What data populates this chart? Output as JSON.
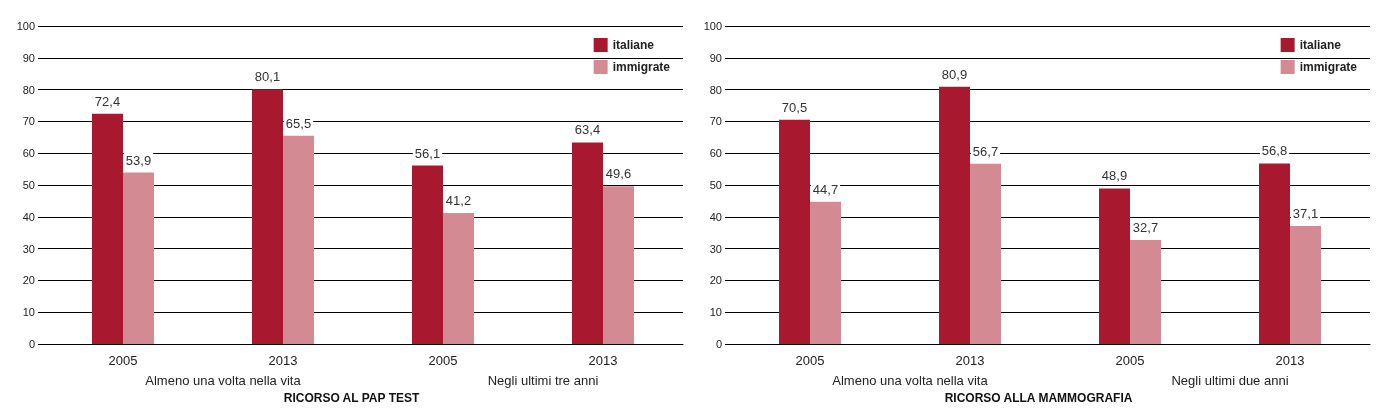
{
  "chart_data": [
    {
      "type": "bar",
      "title": "RICORSO AL PAP TEST",
      "categories": [
        "2005",
        "2013",
        "2005",
        "2013"
      ],
      "annotations": [
        "Almeno una volta nella vita",
        "Negli ultimi tre anni"
      ],
      "series": [
        {
          "name": "italiane",
          "color": "#a8182e",
          "values": [
            72.4,
            80.1,
            56.1,
            63.4
          ],
          "value_labels": [
            "72,4",
            "80,1",
            "56,1",
            "63,4"
          ]
        },
        {
          "name": "immigrate",
          "color": "#d48a93",
          "values": [
            53.9,
            65.5,
            41.2,
            49.6
          ],
          "value_labels": [
            "53,9",
            "65,5",
            "41,2",
            "49,6"
          ]
        }
      ],
      "ylim": [
        0,
        100
      ],
      "yticks": [
        0,
        10,
        20,
        30,
        40,
        50,
        60,
        70,
        80,
        90,
        100
      ],
      "grid": "y",
      "legend": "top right"
    },
    {
      "type": "bar",
      "title": "RICORSO ALLA MAMMOGRAFIA",
      "categories": [
        "2005",
        "2013",
        "2005",
        "2013"
      ],
      "annotations": [
        "Almeno una volta nella vita",
        "Negli ultimi due anni"
      ],
      "series": [
        {
          "name": "italiane",
          "color": "#a8182e",
          "values": [
            70.5,
            80.9,
            48.9,
            56.8
          ],
          "value_labels": [
            "70,5",
            "80,9",
            "48,9",
            "56,8"
          ]
        },
        {
          "name": "immigrate",
          "color": "#d48a93",
          "values": [
            44.7,
            56.7,
            32.7,
            37.1
          ],
          "value_labels": [
            "44,7",
            "56,7",
            "32,7",
            "37,1"
          ]
        }
      ],
      "ylim": [
        0,
        100
      ],
      "yticks": [
        0,
        10,
        20,
        30,
        40,
        50,
        60,
        70,
        80,
        90,
        100
      ],
      "grid": "y",
      "legend": "top right"
    }
  ]
}
